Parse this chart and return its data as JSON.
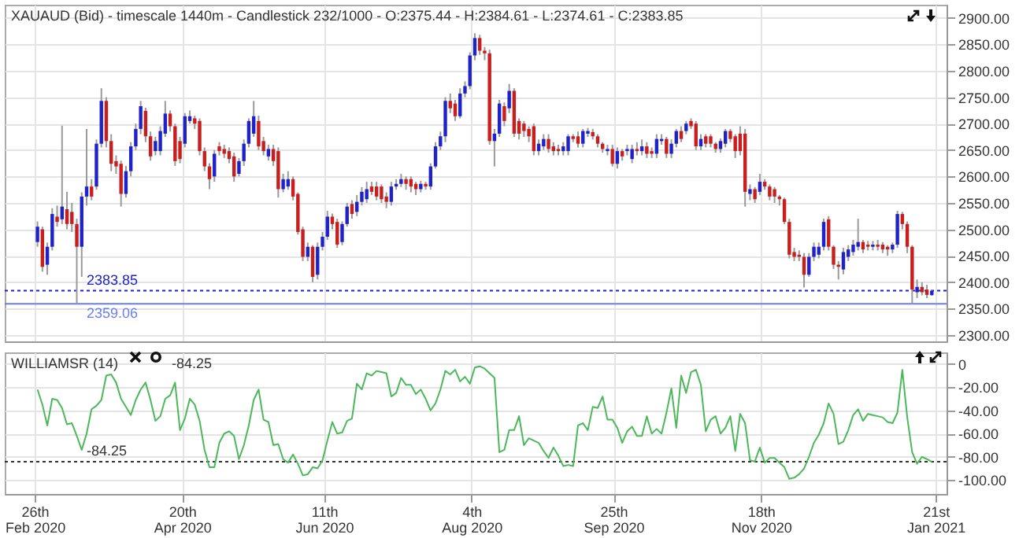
{
  "chart_data": [
    {
      "type": "candlestick",
      "title": "XAUAUD (Bid) - timescale 1440m - Candlestick  232/1000 - O:2375.44 - H:2384.61 - L:2374.61 - C:2383.85",
      "x": [
        "2020-02-27T00:00",
        "2020-02-28T19:12",
        "2020-03-01T14:24",
        "2020-03-03T09:36",
        "2020-03-05T04:48",
        "2020-03-07T00:00",
        "2020-03-08T19:12",
        "2020-03-10T14:24",
        "2020-03-12T09:36",
        "2020-03-14T04:48",
        "2020-03-16T00:00",
        "2020-03-17T19:12",
        "2020-03-19T14:24",
        "2020-03-21T09:36",
        "2020-03-23T04:48",
        "2020-03-25T00:00",
        "2020-03-26T19:12",
        "2020-03-28T14:24",
        "2020-03-30T09:36",
        "2020-04-01T04:48",
        "2020-04-03T00:00",
        "2020-04-04T19:12",
        "2020-04-06T14:24",
        "2020-04-08T09:36",
        "2020-04-10T04:48",
        "2020-04-12T00:00",
        "2020-04-13T19:12",
        "2020-04-15T14:24",
        "2020-04-17T09:36",
        "2020-04-19T04:48",
        "2020-04-21T00:00",
        "2020-04-22T19:12",
        "2020-04-24T14:24",
        "2020-04-26T09:36",
        "2020-04-28T04:48",
        "2020-04-30T00:00",
        "2020-05-01T19:12",
        "2020-05-03T14:24",
        "2020-05-05T09:36",
        "2020-05-07T04:48",
        "2020-05-09T00:00",
        "2020-05-10T19:12",
        "2020-05-12T14:24",
        "2020-05-14T09:36",
        "2020-05-16T04:48",
        "2020-05-18T00:00",
        "2020-05-19T19:12",
        "2020-05-21T14:24",
        "2020-05-23T09:36",
        "2020-05-25T04:48",
        "2020-05-27T00:00",
        "2020-05-28T19:12",
        "2020-05-30T14:24",
        "2020-06-01T09:36",
        "2020-06-03T04:48",
        "2020-06-05T00:00",
        "2020-06-06T19:12",
        "2020-06-08T14:24",
        "2020-06-10T09:36",
        "2020-06-12T04:48",
        "2020-06-14T00:00",
        "2020-06-15T19:12",
        "2020-06-17T14:24",
        "2020-06-19T09:36",
        "2020-06-21T04:48",
        "2020-06-23T00:00",
        "2020-06-24T19:12",
        "2020-06-26T14:24",
        "2020-06-28T09:36",
        "2020-06-30T04:48",
        "2020-07-02T00:00",
        "2020-07-03T19:12",
        "2020-07-05T14:24",
        "2020-07-07T09:36",
        "2020-07-09T04:48",
        "2020-07-11T00:00",
        "2020-07-12T19:12",
        "2020-07-14T14:24",
        "2020-07-16T09:36",
        "2020-07-18T04:48",
        "2020-07-20T00:00",
        "2020-07-21T19:12",
        "2020-07-23T14:24",
        "2020-07-25T09:36",
        "2020-07-27T04:48",
        "2020-07-29T00:00",
        "2020-07-30T19:12",
        "2020-08-01T14:24",
        "2020-08-03T09:36",
        "2020-08-05T04:48",
        "2020-08-07T00:00",
        "2020-08-08T19:12",
        "2020-08-10T14:24",
        "2020-08-12T09:36",
        "2020-08-14T04:48",
        "2020-08-16T00:00",
        "2020-08-17T19:12",
        "2020-08-19T14:24",
        "2020-08-21T09:36",
        "2020-08-23T04:48",
        "2020-08-25T00:00",
        "2020-08-26T19:12",
        "2020-08-28T14:24",
        "2020-08-30T09:36",
        "2020-09-01T04:48",
        "2020-09-03T00:00",
        "2020-09-04T19:12",
        "2020-09-06T14:24",
        "2020-09-08T09:36",
        "2020-09-10T04:48",
        "2020-09-12T00:00",
        "2020-09-13T19:12",
        "2020-09-15T14:24",
        "2020-09-17T09:36",
        "2020-09-19T04:48",
        "2020-09-21T00:00",
        "2020-09-22T19:12",
        "2020-09-24T14:24",
        "2020-09-26T09:36",
        "2020-09-28T04:48",
        "2020-09-30T00:00",
        "2020-10-01T19:12",
        "2020-10-03T14:24",
        "2020-10-05T09:36",
        "2020-10-07T04:48",
        "2020-10-09T00:00",
        "2020-10-10T19:12",
        "2020-10-12T14:24",
        "2020-10-14T09:36",
        "2020-10-16T04:48",
        "2020-10-18T00:00",
        "2020-10-19T19:12",
        "2020-10-21T14:24",
        "2020-10-23T09:36",
        "2020-10-25T04:48",
        "2020-10-27T00:00",
        "2020-10-28T19:12",
        "2020-10-30T14:24",
        "2020-11-01T09:36",
        "2020-11-03T04:48",
        "2020-11-05T00:00",
        "2020-11-06T19:12",
        "2020-11-08T14:24",
        "2020-11-10T09:36",
        "2020-11-12T04:48",
        "2020-11-14T00:00",
        "2020-11-15T19:12",
        "2020-11-17T14:24",
        "2020-11-19T09:36",
        "2020-11-21T04:48",
        "2020-11-23T00:00",
        "2020-11-24T19:12",
        "2020-11-26T14:24",
        "2020-11-28T09:36",
        "2020-11-30T04:48",
        "2020-12-02T00:00",
        "2020-12-03T19:12",
        "2020-12-05T14:24",
        "2020-12-07T09:36",
        "2020-12-09T04:48",
        "2020-12-11T00:00",
        "2020-12-12T19:12",
        "2020-12-14T14:24",
        "2020-12-16T09:36",
        "2020-12-18T04:48",
        "2020-12-20T00:00",
        "2020-12-21T19:12",
        "2020-12-23T14:24",
        "2020-12-25T09:36",
        "2020-12-27T04:48",
        "2020-12-29T00:00",
        "2020-12-30T19:12",
        "2021-01-01T14:24",
        "2021-01-03T09:36",
        "2021-01-05T04:48",
        "2021-01-07T00:00",
        "2021-01-08T19:12",
        "2021-01-10T14:24",
        "2021-01-12T09:36",
        "2021-01-14T04:48",
        "2021-01-16T00:00",
        "2021-01-17T19:12",
        "2021-01-19T14:24"
      ],
      "ohlc": [
        [
          2476,
          2515,
          2467,
          2505
        ],
        [
          2500,
          2505,
          2420,
          2429
        ],
        [
          2433,
          2475,
          2414,
          2467
        ],
        [
          2467,
          2540,
          2460,
          2529
        ],
        [
          2524,
          2545,
          2505,
          2514
        ],
        [
          2519,
          2696,
          2510,
          2543
        ],
        [
          2538,
          2571,
          2500,
          2510
        ],
        [
          2533,
          2550,
          2495,
          2510
        ],
        [
          2510,
          2520,
          2360,
          2467
        ],
        [
          2467,
          2570,
          2410,
          2562
        ],
        [
          2562,
          2690,
          2545,
          2581
        ],
        [
          2581,
          2595,
          2555,
          2562
        ],
        [
          2581,
          2670,
          2575,
          2662
        ],
        [
          2662,
          2767,
          2655,
          2743
        ],
        [
          2743,
          2750,
          2655,
          2667
        ],
        [
          2667,
          2680,
          2610,
          2624
        ],
        [
          2629,
          2640,
          2605,
          2619
        ],
        [
          2624,
          2630,
          2543,
          2567
        ],
        [
          2567,
          2620,
          2560,
          2610
        ],
        [
          2610,
          2665,
          2600,
          2657
        ],
        [
          2657,
          2700,
          2650,
          2690
        ],
        [
          2690,
          2743,
          2680,
          2733
        ],
        [
          2724,
          2730,
          2665,
          2676
        ],
        [
          2676,
          2685,
          2630,
          2638
        ],
        [
          2648,
          2675,
          2640,
          2667
        ],
        [
          2648,
          2695,
          2640,
          2686
        ],
        [
          2681,
          2743,
          2675,
          2719
        ],
        [
          2719,
          2725,
          2685,
          2695
        ],
        [
          2695,
          2700,
          2620,
          2629
        ],
        [
          2667,
          2675,
          2625,
          2633
        ],
        [
          2662,
          2720,
          2655,
          2714
        ],
        [
          2705,
          2725,
          2700,
          2714
        ],
        [
          2710,
          2715,
          2690,
          2700
        ],
        [
          2705,
          2710,
          2640,
          2648
        ],
        [
          2648,
          2655,
          2610,
          2619
        ],
        [
          2619,
          2625,
          2576,
          2595
        ],
        [
          2600,
          2650,
          2590,
          2643
        ],
        [
          2657,
          2665,
          2640,
          2648
        ],
        [
          2652,
          2660,
          2635,
          2643
        ],
        [
          2648,
          2655,
          2625,
          2633
        ],
        [
          2638,
          2645,
          2590,
          2600
        ],
        [
          2605,
          2635,
          2600,
          2629
        ],
        [
          2629,
          2670,
          2620,
          2662
        ],
        [
          2662,
          2710,
          2655,
          2705
        ],
        [
          2681,
          2743,
          2675,
          2714
        ],
        [
          2705,
          2715,
          2650,
          2657
        ],
        [
          2667,
          2675,
          2640,
          2648
        ],
        [
          2638,
          2660,
          2630,
          2652
        ],
        [
          2652,
          2660,
          2620,
          2629
        ],
        [
          2648,
          2655,
          2560,
          2576
        ],
        [
          2576,
          2605,
          2570,
          2595
        ],
        [
          2581,
          2610,
          2575,
          2595
        ],
        [
          2595,
          2600,
          2555,
          2562
        ],
        [
          2567,
          2570,
          2490,
          2495
        ],
        [
          2500,
          2505,
          2440,
          2448
        ],
        [
          2448,
          2475,
          2440,
          2467
        ],
        [
          2467,
          2470,
          2400,
          2410
        ],
        [
          2414,
          2475,
          2405,
          2467
        ],
        [
          2467,
          2495,
          2460,
          2486
        ],
        [
          2486,
          2535,
          2480,
          2524
        ],
        [
          2524,
          2530,
          2500,
          2510
        ],
        [
          2514,
          2520,
          2465,
          2471
        ],
        [
          2476,
          2515,
          2470,
          2510
        ],
        [
          2510,
          2550,
          2505,
          2543
        ],
        [
          2548,
          2555,
          2520,
          2529
        ],
        [
          2533,
          2565,
          2525,
          2552
        ],
        [
          2552,
          2580,
          2545,
          2571
        ],
        [
          2557,
          2590,
          2550,
          2576
        ],
        [
          2581,
          2590,
          2565,
          2571
        ],
        [
          2581,
          2590,
          2555,
          2562
        ],
        [
          2581,
          2585,
          2550,
          2557
        ],
        [
          2562,
          2570,
          2540,
          2552
        ],
        [
          2552,
          2590,
          2545,
          2581
        ],
        [
          2581,
          2595,
          2575,
          2586
        ],
        [
          2586,
          2605,
          2580,
          2595
        ],
        [
          2595,
          2600,
          2575,
          2586
        ],
        [
          2595,
          2600,
          2570,
          2581
        ],
        [
          2586,
          2590,
          2565,
          2576
        ],
        [
          2576,
          2592,
          2570,
          2586
        ],
        [
          2586,
          2590,
          2575,
          2581
        ],
        [
          2581,
          2625,
          2575,
          2619
        ],
        [
          2619,
          2665,
          2615,
          2657
        ],
        [
          2657,
          2685,
          2650,
          2676
        ],
        [
          2676,
          2750,
          2665,
          2743
        ],
        [
          2743,
          2757,
          2720,
          2729
        ],
        [
          2738,
          2745,
          2705,
          2714
        ],
        [
          2714,
          2767,
          2710,
          2757
        ],
        [
          2757,
          2780,
          2750,
          2771
        ],
        [
          2771,
          2835,
          2765,
          2829
        ],
        [
          2829,
          2871,
          2820,
          2862
        ],
        [
          2862,
          2868,
          2830,
          2838
        ],
        [
          2838,
          2845,
          2820,
          2833
        ],
        [
          2833,
          2840,
          2660,
          2667
        ],
        [
          2667,
          2690,
          2619,
          2681
        ],
        [
          2681,
          2745,
          2675,
          2738
        ],
        [
          2733,
          2740,
          2695,
          2705
        ],
        [
          2729,
          2775,
          2720,
          2762
        ],
        [
          2762,
          2767,
          2675,
          2681
        ],
        [
          2705,
          2710,
          2670,
          2681
        ],
        [
          2700,
          2705,
          2675,
          2686
        ],
        [
          2690,
          2695,
          2665,
          2676
        ],
        [
          2695,
          2700,
          2640,
          2648
        ],
        [
          2648,
          2670,
          2640,
          2662
        ],
        [
          2657,
          2680,
          2650,
          2671
        ],
        [
          2671,
          2680,
          2645,
          2652
        ],
        [
          2657,
          2665,
          2640,
          2648
        ],
        [
          2652,
          2660,
          2640,
          2648
        ],
        [
          2648,
          2665,
          2640,
          2657
        ],
        [
          2648,
          2680,
          2640,
          2676
        ],
        [
          2676,
          2680,
          2665,
          2671
        ],
        [
          2676,
          2685,
          2655,
          2662
        ],
        [
          2662,
          2690,
          2655,
          2686
        ],
        [
          2681,
          2692,
          2675,
          2686
        ],
        [
          2684,
          2690,
          2670,
          2676
        ],
        [
          2676,
          2680,
          2655,
          2662
        ],
        [
          2662,
          2665,
          2645,
          2652
        ],
        [
          2648,
          2660,
          2640,
          2652
        ],
        [
          2652,
          2660,
          2619,
          2624
        ],
        [
          2624,
          2655,
          2615,
          2648
        ],
        [
          2648,
          2652,
          2630,
          2638
        ],
        [
          2648,
          2660,
          2640,
          2652
        ],
        [
          2633,
          2660,
          2625,
          2652
        ],
        [
          2652,
          2665,
          2640,
          2648
        ],
        [
          2648,
          2670,
          2640,
          2657
        ],
        [
          2657,
          2665,
          2635,
          2643
        ],
        [
          2648,
          2655,
          2635,
          2643
        ],
        [
          2643,
          2680,
          2635,
          2671
        ],
        [
          2667,
          2680,
          2660,
          2671
        ],
        [
          2671,
          2675,
          2635,
          2643
        ],
        [
          2643,
          2670,
          2635,
          2662
        ],
        [
          2662,
          2690,
          2655,
          2686
        ],
        [
          2686,
          2695,
          2665,
          2671
        ],
        [
          2686,
          2705,
          2680,
          2700
        ],
        [
          2705,
          2710,
          2690,
          2695
        ],
        [
          2700,
          2705,
          2650,
          2657
        ],
        [
          2657,
          2680,
          2650,
          2671
        ],
        [
          2676,
          2680,
          2655,
          2662
        ],
        [
          2676,
          2680,
          2655,
          2662
        ],
        [
          2662,
          2665,
          2645,
          2652
        ],
        [
          2652,
          2672,
          2645,
          2667
        ],
        [
          2662,
          2690,
          2655,
          2686
        ],
        [
          2686,
          2690,
          2665,
          2671
        ],
        [
          2676,
          2680,
          2635,
          2648
        ],
        [
          2681,
          2695,
          2640,
          2648
        ],
        [
          2681,
          2690,
          2543,
          2571
        ],
        [
          2567,
          2585,
          2555,
          2576
        ],
        [
          2576,
          2580,
          2550,
          2557
        ],
        [
          2571,
          2605,
          2565,
          2590
        ],
        [
          2590,
          2595,
          2575,
          2581
        ],
        [
          2581,
          2585,
          2555,
          2562
        ],
        [
          2576,
          2580,
          2550,
          2562
        ],
        [
          2562,
          2565,
          2545,
          2557
        ],
        [
          2557,
          2560,
          2510,
          2514
        ],
        [
          2514,
          2520,
          2445,
          2452
        ],
        [
          2457,
          2465,
          2440,
          2448
        ],
        [
          2452,
          2460,
          2440,
          2448
        ],
        [
          2448,
          2455,
          2390,
          2414
        ],
        [
          2414,
          2455,
          2410,
          2448
        ],
        [
          2448,
          2475,
          2440,
          2467
        ],
        [
          2452,
          2475,
          2445,
          2467
        ],
        [
          2467,
          2520,
          2460,
          2514
        ],
        [
          2519,
          2525,
          2460,
          2467
        ],
        [
          2467,
          2470,
          2425,
          2433
        ],
        [
          2433,
          2440,
          2405,
          2429
        ],
        [
          2424,
          2465,
          2415,
          2457
        ],
        [
          2448,
          2470,
          2440,
          2462
        ],
        [
          2457,
          2480,
          2450,
          2471
        ],
        [
          2467,
          2520,
          2460,
          2476
        ],
        [
          2476,
          2480,
          2455,
          2462
        ],
        [
          2471,
          2478,
          2460,
          2467
        ],
        [
          2467,
          2478,
          2460,
          2471
        ],
        [
          2471,
          2480,
          2460,
          2467
        ],
        [
          2471,
          2476,
          2455,
          2462
        ],
        [
          2467,
          2470,
          2450,
          2462
        ],
        [
          2462,
          2475,
          2455,
          2471
        ],
        [
          2471,
          2535,
          2465,
          2529
        ],
        [
          2529,
          2533,
          2500,
          2510
        ],
        [
          2510,
          2515,
          2455,
          2467
        ],
        [
          2467,
          2470,
          2359,
          2386
        ],
        [
          2381,
          2405,
          2370,
          2391
        ],
        [
          2391,
          2400,
          2375,
          2381
        ],
        [
          2386,
          2395,
          2370,
          2376
        ],
        [
          2375.44,
          2384.61,
          2374.61,
          2383.85
        ]
      ],
      "colors": [
        "#1e22c8",
        "#c81e1e",
        "#1e22c8",
        "#1e22c8",
        "#c81e1e",
        "#1e22c8",
        "#c81e1e",
        "#c81e1e",
        "#c81e1e",
        "#1e22c8",
        "#1e22c8",
        "#c81e1e",
        "#1e22c8",
        "#1e22c8",
        "#c81e1e",
        "#c81e1e",
        "#c81e1e",
        "#c81e1e",
        "#1e22c8",
        "#1e22c8",
        "#1e22c8",
        "#1e22c8",
        "#c81e1e",
        "#c81e1e",
        "#1e22c8",
        "#1e22c8",
        "#1e22c8",
        "#c81e1e",
        "#c81e1e",
        "#c81e1e",
        "#1e22c8",
        "#1e22c8",
        "#c81e1e",
        "#c81e1e",
        "#c81e1e",
        "#c81e1e",
        "#1e22c8",
        "#c81e1e",
        "#c81e1e",
        "#c81e1e",
        "#c81e1e",
        "#1e22c8",
        "#1e22c8",
        "#1e22c8",
        "#1e22c8",
        "#c81e1e",
        "#c81e1e",
        "#1e22c8",
        "#c81e1e",
        "#c81e1e",
        "#1e22c8",
        "#1e22c8",
        "#c81e1e",
        "#c81e1e",
        "#c81e1e",
        "#1e22c8",
        "#c81e1e",
        "#1e22c8",
        "#1e22c8",
        "#1e22c8",
        "#c81e1e",
        "#c81e1e",
        "#1e22c8",
        "#1e22c8",
        "#c81e1e",
        "#1e22c8",
        "#1e22c8",
        "#1e22c8",
        "#c81e1e",
        "#c81e1e",
        "#c81e1e",
        "#c81e1e",
        "#1e22c8",
        "#1e22c8",
        "#1e22c8",
        "#c81e1e",
        "#c81e1e",
        "#c81e1e",
        "#1e22c8",
        "#c81e1e",
        "#1e22c8",
        "#1e22c8",
        "#1e22c8",
        "#1e22c8",
        "#c81e1e",
        "#c81e1e",
        "#1e22c8",
        "#1e22c8",
        "#1e22c8",
        "#1e22c8",
        "#c81e1e",
        "#c81e1e",
        "#c81e1e",
        "#1e22c8",
        "#1e22c8",
        "#c81e1e",
        "#1e22c8",
        "#c81e1e",
        "#c81e1e",
        "#c81e1e",
        "#c81e1e",
        "#c81e1e",
        "#1e22c8",
        "#1e22c8",
        "#c81e1e",
        "#c81e1e",
        "#c81e1e",
        "#1e22c8",
        "#1e22c8",
        "#c81e1e",
        "#c81e1e",
        "#1e22c8",
        "#1e22c8",
        "#c81e1e",
        "#c81e1e",
        "#c81e1e",
        "#1e22c8",
        "#c81e1e",
        "#1e22c8",
        "#c81e1e",
        "#1e22c8",
        "#1e22c8",
        "#c81e1e",
        "#1e22c8",
        "#c81e1e",
        "#c81e1e",
        "#1e22c8",
        "#1e22c8",
        "#c81e1e",
        "#1e22c8",
        "#1e22c8",
        "#c81e1e",
        "#1e22c8",
        "#c81e1e",
        "#c81e1e",
        "#1e22c8",
        "#c81e1e",
        "#c81e1e",
        "#c81e1e",
        "#1e22c8",
        "#1e22c8",
        "#c81e1e",
        "#c81e1e",
        "#c81e1e",
        "#c81e1e",
        "#1e22c8",
        "#c81e1e",
        "#1e22c8",
        "#c81e1e",
        "#c81e1e",
        "#c81e1e",
        "#c81e1e",
        "#c81e1e",
        "#c81e1e",
        "#c81e1e",
        "#c81e1e",
        "#c81e1e",
        "#1e22c8",
        "#1e22c8",
        "#1e22c8",
        "#1e22c8",
        "#c81e1e",
        "#c81e1e",
        "#c81e1e",
        "#1e22c8",
        "#1e22c8",
        "#1e22c8",
        "#1e22c8",
        "#c81e1e",
        "#c81e1e",
        "#1e22c8",
        "#c81e1e",
        "#c81e1e",
        "#c81e1e",
        "#1e22c8",
        "#1e22c8",
        "#c81e1e",
        "#c81e1e",
        "#c81e1e",
        "#1e22c8",
        "#c81e1e",
        "#c81e1e",
        "#1e22c8"
      ],
      "xlim": [
        "2020-02-15",
        "2021-01-25"
      ],
      "xticks": [
        {
          "value": "2020-02-26",
          "label": null
        },
        {
          "value": "2020-04-20",
          "label": null
        },
        {
          "value": "2020-06-11",
          "label": null
        },
        {
          "value": "2020-08-04",
          "label": null
        },
        {
          "value": "2020-09-25",
          "label": null
        },
        {
          "value": "2020-11-18",
          "label": null
        },
        {
          "value": "2021-01-21",
          "label": null
        }
      ],
      "ylim": [
        2288,
        2925
      ],
      "yticks": [
        {
          "value": 2300,
          "label": "2300.00"
        },
        {
          "value": 2350,
          "label": "2350.00"
        },
        {
          "value": 2400,
          "label": "2400.00"
        },
        {
          "value": 2450,
          "label": "2450.00"
        },
        {
          "value": 2500,
          "label": "2500.00"
        },
        {
          "value": 2550,
          "label": "2550.00"
        },
        {
          "value": 2600,
          "label": "2600.00"
        },
        {
          "value": 2650,
          "label": "2650.00"
        },
        {
          "value": 2700,
          "label": "2700.00"
        },
        {
          "value": 2750,
          "label": "2750.00"
        },
        {
          "value": 2800,
          "label": "2800.00"
        },
        {
          "value": 2850,
          "label": "2850.00"
        },
        {
          "value": 2900,
          "label": "2900.00"
        }
      ],
      "grid": true,
      "tick_labels": "y",
      "ref_lines": [
        {
          "axis": "y",
          "value": 2383.85,
          "label": "2383.85",
          "color": "#1e22c8",
          "line_style": "dotted"
        },
        {
          "axis": "y",
          "value": 2359.06,
          "label": "2359.06",
          "color": "#6b7cf0",
          "line_style": "solid"
        }
      ]
    },
    {
      "type": "line",
      "title": "WILLIAMSR (14)",
      "annotations": [
        "-84.25"
      ],
      "x": [
        "2020-02-27T00:00",
        "2020-02-28T19:12",
        "2020-03-01T14:24",
        "2020-03-03T09:36",
        "2020-03-05T04:48",
        "2020-03-07T00:00",
        "2020-03-08T19:12",
        "2020-03-10T14:24",
        "2020-03-12T09:36",
        "2020-03-14T04:48",
        "2020-03-16T00:00",
        "2020-03-17T19:12",
        "2020-03-19T14:24",
        "2020-03-21T09:36",
        "2020-03-23T04:48",
        "2020-03-25T00:00",
        "2020-03-26T19:12",
        "2020-03-28T14:24",
        "2020-03-30T09:36",
        "2020-04-01T04:48",
        "2020-04-03T00:00",
        "2020-04-04T19:12",
        "2020-04-06T14:24",
        "2020-04-08T09:36",
        "2020-04-10T04:48",
        "2020-04-12T00:00",
        "2020-04-13T19:12",
        "2020-04-15T14:24",
        "2020-04-17T09:36",
        "2020-04-19T04:48",
        "2020-04-21T00:00",
        "2020-04-22T19:12",
        "2020-04-24T14:24",
        "2020-04-26T09:36",
        "2020-04-28T04:48",
        "2020-04-30T00:00",
        "2020-05-01T19:12",
        "2020-05-03T14:24",
        "2020-05-05T09:36",
        "2020-05-07T04:48",
        "2020-05-09T00:00",
        "2020-05-10T19:12",
        "2020-05-12T14:24",
        "2020-05-14T09:36",
        "2020-05-16T04:48",
        "2020-05-18T00:00",
        "2020-05-19T19:12",
        "2020-05-21T14:24",
        "2020-05-23T09:36",
        "2020-05-25T04:48",
        "2020-05-27T00:00",
        "2020-05-28T19:12",
        "2020-05-30T14:24",
        "2020-06-01T09:36",
        "2020-06-03T04:48",
        "2020-06-05T00:00",
        "2020-06-06T19:12",
        "2020-06-08T14:24",
        "2020-06-10T09:36",
        "2020-06-12T04:48",
        "2020-06-14T00:00",
        "2020-06-15T19:12",
        "2020-06-17T14:24",
        "2020-06-19T09:36",
        "2020-06-21T04:48",
        "2020-06-23T00:00",
        "2020-06-24T19:12",
        "2020-06-26T14:24",
        "2020-06-28T09:36",
        "2020-06-30T04:48",
        "2020-07-02T00:00",
        "2020-07-03T19:12",
        "2020-07-05T14:24",
        "2020-07-07T09:36",
        "2020-07-09T04:48",
        "2020-07-11T00:00",
        "2020-07-12T19:12",
        "2020-07-14T14:24",
        "2020-07-16T09:36",
        "2020-07-18T04:48",
        "2020-07-20T00:00",
        "2020-07-21T19:12",
        "2020-07-23T14:24",
        "2020-07-25T09:36",
        "2020-07-27T04:48",
        "2020-07-29T00:00",
        "2020-07-30T19:12",
        "2020-08-01T14:24",
        "2020-08-03T09:36",
        "2020-08-05T04:48",
        "2020-08-07T00:00",
        "2020-08-08T19:12",
        "2020-08-10T14:24",
        "2020-08-12T09:36",
        "2020-08-14T04:48",
        "2020-08-16T00:00",
        "2020-08-17T19:12",
        "2020-08-19T14:24",
        "2020-08-21T09:36",
        "2020-08-23T04:48",
        "2020-08-25T00:00",
        "2020-08-26T19:12",
        "2020-08-28T14:24",
        "2020-08-30T09:36",
        "2020-09-01T04:48",
        "2020-09-03T00:00",
        "2020-09-04T19:12",
        "2020-09-06T14:24",
        "2020-09-08T09:36",
        "2020-09-10T04:48",
        "2020-09-12T00:00",
        "2020-09-13T19:12",
        "2020-09-15T14:24",
        "2020-09-17T09:36",
        "2020-09-19T04:48",
        "2020-09-21T00:00",
        "2020-09-22T19:12",
        "2020-09-24T14:24",
        "2020-09-26T09:36",
        "2020-09-28T04:48",
        "2020-09-30T00:00",
        "2020-10-01T19:12",
        "2020-10-03T14:24",
        "2020-10-05T09:36",
        "2020-10-07T04:48",
        "2020-10-09T00:00",
        "2020-10-10T19:12",
        "2020-10-12T14:24",
        "2020-10-14T09:36",
        "2020-10-16T04:48",
        "2020-10-18T00:00",
        "2020-10-19T19:12",
        "2020-10-21T14:24",
        "2020-10-23T09:36",
        "2020-10-25T04:48",
        "2020-10-27T00:00",
        "2020-10-28T19:12",
        "2020-10-30T14:24",
        "2020-11-01T09:36",
        "2020-11-03T04:48",
        "2020-11-05T00:00",
        "2020-11-06T19:12",
        "2020-11-08T14:24",
        "2020-11-10T09:36",
        "2020-11-12T04:48",
        "2020-11-14T00:00",
        "2020-11-15T19:12",
        "2020-11-17T14:24",
        "2020-11-19T09:36",
        "2020-11-21T04:48",
        "2020-11-23T00:00",
        "2020-11-24T19:12",
        "2020-11-26T14:24",
        "2020-11-28T09:36",
        "2020-11-30T04:48",
        "2020-12-02T00:00",
        "2020-12-03T19:12",
        "2020-12-05T14:24",
        "2020-12-07T09:36",
        "2020-12-09T04:48",
        "2020-12-11T00:00",
        "2020-12-12T19:12",
        "2020-12-14T14:24",
        "2020-12-16T09:36",
        "2020-12-18T04:48",
        "2020-12-20T00:00",
        "2020-12-21T19:12",
        "2020-12-23T14:24",
        "2020-12-25T09:36",
        "2020-12-27T04:48",
        "2020-12-29T00:00",
        "2020-12-30T19:12",
        "2021-01-01T14:24",
        "2021-01-03T09:36",
        "2021-01-05T04:48",
        "2021-01-07T00:00",
        "2021-01-08T19:12",
        "2021-01-10T14:24",
        "2021-01-12T09:36",
        "2021-01-14T04:48",
        "2021-01-16T00:00",
        "2021-01-17T19:12",
        "2021-01-19T14:24"
      ],
      "series": [
        {
          "color": "#4cb85a",
          "values": [
            -22,
            -35,
            -53,
            -30,
            -31,
            -38,
            -52,
            -51,
            -62,
            -74,
            -60,
            -39,
            -36,
            -31,
            -10,
            -9,
            -16,
            -30,
            -37,
            -44,
            -31,
            -22,
            -16,
            -31,
            -49,
            -45,
            -30,
            -27,
            -16,
            -57,
            -47,
            -30,
            -35,
            -49,
            -74,
            -89,
            -89,
            -68,
            -60,
            -58,
            -62,
            -82,
            -70,
            -53,
            -31,
            -22,
            -48,
            -50,
            -70,
            -69,
            -82,
            -85,
            -78,
            -86,
            -96,
            -95,
            -89,
            -90,
            -83,
            -66,
            -50,
            -60,
            -59,
            -49,
            -47,
            -17,
            -22,
            -8,
            -10,
            -6,
            -7,
            -8,
            -28,
            -25,
            -12,
            -18,
            -18,
            -26,
            -22,
            -30,
            -40,
            -34,
            -22,
            -6,
            -9,
            -5,
            -15,
            -11,
            -17,
            -3,
            -2,
            -4,
            -8,
            -12,
            -76,
            -74,
            -57,
            -57,
            -45,
            -70,
            -64,
            -66,
            -68,
            -75,
            -81,
            -72,
            -79,
            -88,
            -87,
            -88,
            -53,
            -51,
            -57,
            -37,
            -38,
            -28,
            -48,
            -48,
            -55,
            -68,
            -58,
            -54,
            -62,
            -62,
            -45,
            -60,
            -56,
            -60,
            -42,
            -21,
            -55,
            -10,
            -25,
            -7,
            -5,
            -18,
            -58,
            -48,
            -45,
            -60,
            -55,
            -45,
            -75,
            -43,
            -51,
            -83,
            -84,
            -72,
            -85,
            -81,
            -81,
            -85,
            -89,
            -99,
            -98,
            -95,
            -90,
            -80,
            -68,
            -61,
            -51,
            -34,
            -43,
            -69,
            -67,
            -57,
            -44,
            -39,
            -49,
            -43,
            -44,
            -45,
            -46,
            -50,
            -51,
            -42,
            -5,
            -46,
            -76,
            -86,
            -80,
            -82,
            -84.25
          ]
        }
      ],
      "xlim": [
        "2020-02-15",
        "2021-01-25"
      ],
      "xticks": [
        {
          "value": "2020-02-26",
          "label": "26th Feb 2020"
        },
        {
          "value": "2020-04-20",
          "label": "20th Apr 2020"
        },
        {
          "value": "2020-06-11",
          "label": "11th Jun 2020"
        },
        {
          "value": "2020-08-04",
          "label": "4th Aug 2020"
        },
        {
          "value": "2020-09-25",
          "label": "25th Sep 2020"
        },
        {
          "value": "2020-11-18",
          "label": "18th Nov 2020"
        },
        {
          "value": "2021-01-21",
          "label": "21st Jan 2021"
        }
      ],
      "ylim": [
        -112,
        10
      ],
      "yticks": [
        0,
        {
          "value": -20,
          "label": "-20.00"
        },
        {
          "value": -40,
          "label": "-40.00"
        },
        {
          "value": -60,
          "label": "-60.00"
        },
        {
          "value": -80,
          "label": "-80.00"
        },
        {
          "value": -100,
          "label": "-100.00"
        }
      ],
      "grid": true,
      "ref_lines": [
        {
          "axis": "y",
          "value": -84.25,
          "label": "-84.25",
          "color": "#333333",
          "line_style": "dotted"
        }
      ]
    }
  ]
}
